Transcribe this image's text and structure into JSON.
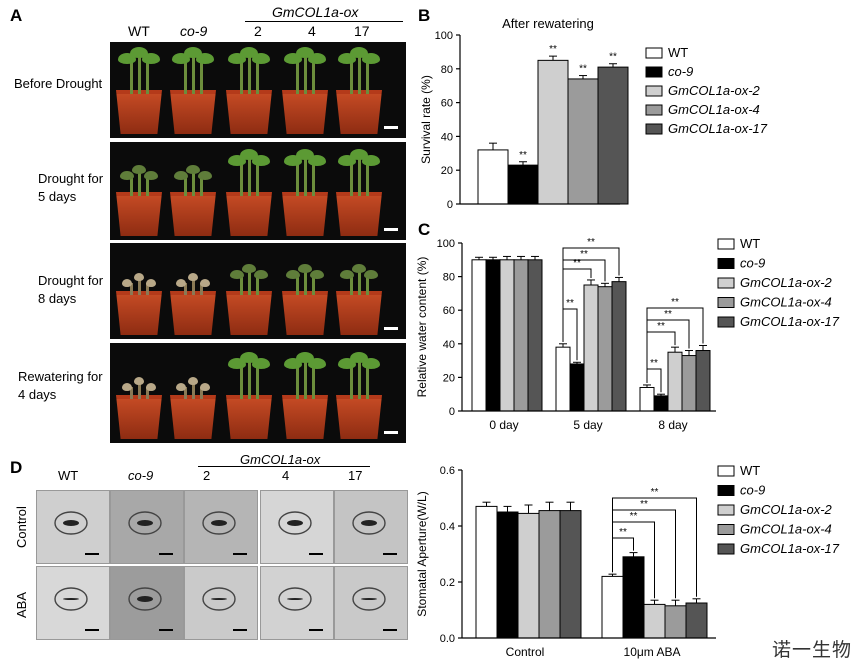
{
  "panel_letters": {
    "a": "A",
    "b": "B",
    "c": "C",
    "d": "D"
  },
  "panel_a": {
    "col_headers": [
      "WT",
      "co-9",
      "2",
      "4",
      "17"
    ],
    "group_label": "GmCOL1a-ox",
    "row_labels": [
      "Before Drought",
      "Drought for\n5 days",
      "Drought for\n8 days",
      "Rewatering for\n4 days"
    ]
  },
  "panel_d_images": {
    "col_headers": [
      "WT",
      "co-9",
      "2",
      "4",
      "17"
    ],
    "group_label": "GmCOL1a-ox",
    "row_labels": [
      "Control",
      "ABA"
    ]
  },
  "watermark": "诺一生物",
  "colors": {
    "WT": "#ffffff",
    "co-9": "#000000",
    "GmCOL1a-ox-2": "#cfcfcf",
    "GmCOL1a-ox-4": "#9b9b9b",
    "GmCOL1a-ox-17": "#555555"
  },
  "chart_data": [
    {
      "panel": "B",
      "type": "bar",
      "title": "After rewatering",
      "ylabel": "Survival rate (%)",
      "xlabel": "",
      "ylim": [
        0,
        100
      ],
      "yticks": [
        0,
        20,
        40,
        60,
        80,
        100
      ],
      "legend_position": "right",
      "series": [
        {
          "name": "WT",
          "values": [
            32
          ],
          "errors": [
            4
          ],
          "sig": [
            ""
          ]
        },
        {
          "name": "co-9",
          "values": [
            23
          ],
          "errors": [
            2
          ],
          "sig": [
            "**"
          ]
        },
        {
          "name": "GmCOL1a-ox-2",
          "values": [
            85
          ],
          "errors": [
            2.5
          ],
          "sig": [
            "**"
          ]
        },
        {
          "name": "GmCOL1a-ox-4",
          "values": [
            74
          ],
          "errors": [
            2
          ],
          "sig": [
            "**"
          ]
        },
        {
          "name": "GmCOL1a-ox-17",
          "values": [
            81
          ],
          "errors": [
            2
          ],
          "sig": [
            "**"
          ]
        }
      ]
    },
    {
      "panel": "C",
      "type": "bar",
      "ylabel": "Relative water content (%)",
      "xlabel": "",
      "categories": [
        "0 day",
        "5 day",
        "8 day"
      ],
      "ylim": [
        0,
        100
      ],
      "yticks": [
        0,
        20,
        40,
        60,
        80,
        100
      ],
      "legend_position": "right",
      "series": [
        {
          "name": "WT",
          "values": [
            90,
            38,
            14
          ],
          "errors": [
            1.5,
            2,
            1.5
          ]
        },
        {
          "name": "co-9",
          "values": [
            90,
            28,
            9
          ],
          "errors": [
            1.5,
            1,
            1
          ]
        },
        {
          "name": "GmCOL1a-ox-2",
          "values": [
            90,
            75,
            35
          ],
          "errors": [
            2,
            3,
            3
          ]
        },
        {
          "name": "GmCOL1a-ox-4",
          "values": [
            90,
            74,
            33
          ],
          "errors": [
            2,
            2,
            3
          ]
        },
        {
          "name": "GmCOL1a-ox-17",
          "values": [
            90,
            77,
            36
          ],
          "errors": [
            2,
            2.5,
            3
          ]
        }
      ],
      "annotations": [
        "**",
        "**",
        "**",
        "**",
        "**",
        "**",
        "**",
        "**"
      ]
    },
    {
      "panel": "D",
      "type": "bar",
      "ylabel": "Stomatal Aperture(W/L)",
      "xlabel": "",
      "categories": [
        "Control",
        "10μm ABA"
      ],
      "ylim": [
        0,
        0.6
      ],
      "yticks": [
        0.0,
        0.2,
        0.4,
        0.6
      ],
      "legend_position": "right",
      "series": [
        {
          "name": "WT",
          "values": [
            0.47,
            0.22
          ],
          "errors": [
            0.015,
            0.008
          ]
        },
        {
          "name": "co-9",
          "values": [
            0.45,
            0.29
          ],
          "errors": [
            0.02,
            0.015
          ]
        },
        {
          "name": "GmCOL1a-ox-2",
          "values": [
            0.445,
            0.12
          ],
          "errors": [
            0.03,
            0.015
          ]
        },
        {
          "name": "GmCOL1a-ox-4",
          "values": [
            0.455,
            0.115
          ],
          "errors": [
            0.03,
            0.02
          ]
        },
        {
          "name": "GmCOL1a-ox-17",
          "values": [
            0.455,
            0.125
          ],
          "errors": [
            0.03,
            0.015
          ]
        }
      ],
      "annotations": [
        "**",
        "**",
        "**",
        "**"
      ]
    }
  ]
}
